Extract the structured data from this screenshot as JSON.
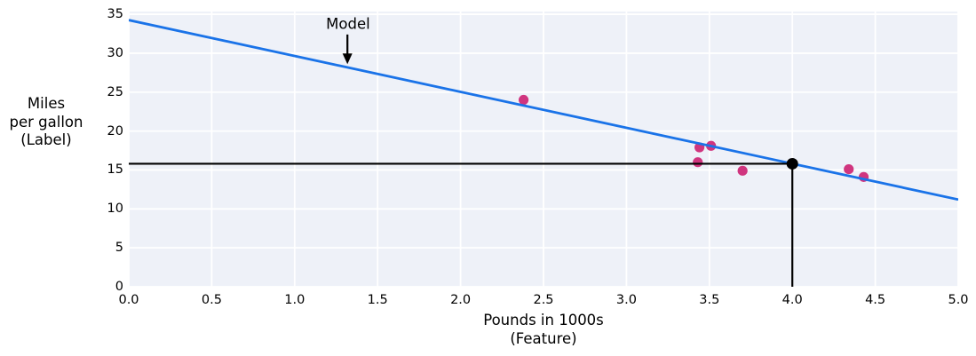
{
  "chart_data": {
    "type": "scatter",
    "xlabel_lines": [
      "Pounds in 1000s",
      "(Feature)"
    ],
    "ylabel_lines": [
      "Miles",
      "per gallon",
      "(Label)"
    ],
    "xlim": [
      0,
      5
    ],
    "ylim": [
      0,
      35.35
    ],
    "x_ticks": [
      0,
      0.5,
      1,
      1.5,
      2,
      2.5,
      3,
      3.5,
      4,
      4.5,
      5
    ],
    "x_tick_labels": [
      "0.0",
      "0.5",
      "1.0",
      "1.5",
      "2.0",
      "2.5",
      "3.0",
      "3.5",
      "4.0",
      "4.5",
      "5.0"
    ],
    "y_ticks": [
      0,
      5,
      10,
      15,
      20,
      25,
      30,
      35
    ],
    "y_tick_labels": [
      "0",
      "5",
      "10",
      "15",
      "20",
      "25",
      "30",
      "35"
    ],
    "grid": true,
    "legend": "none",
    "plot_bg_color": "#eef1f8",
    "grid_color": "#ffffff",
    "series": [
      {
        "name": "data-points",
        "kind": "scatter",
        "color": "#d0357f",
        "marker_radius": 5.6,
        "points": [
          [
            2.38,
            24.0
          ],
          [
            3.43,
            16.0
          ],
          [
            3.44,
            17.9
          ],
          [
            3.51,
            18.1
          ],
          [
            3.7,
            14.9
          ],
          [
            4.34,
            15.1
          ],
          [
            4.43,
            14.1
          ]
        ]
      },
      {
        "name": "model-line",
        "kind": "line",
        "color": "#1a73e8",
        "line_width": 2.8,
        "points": [
          [
            0,
            34.25
          ],
          [
            5,
            11.2
          ]
        ]
      }
    ],
    "prediction": {
      "name": "prediction-marker",
      "point": [
        4.0,
        15.8
      ],
      "color": "#000000",
      "dot_radius": 6.5,
      "line_width": 2.2
    },
    "annotation": {
      "label": "Model",
      "text_xy": [
        1.322,
        33.75
      ],
      "arrow_from": [
        1.318,
        32.4
      ],
      "arrow_to": [
        1.318,
        28.6
      ],
      "color": "#000000"
    }
  }
}
